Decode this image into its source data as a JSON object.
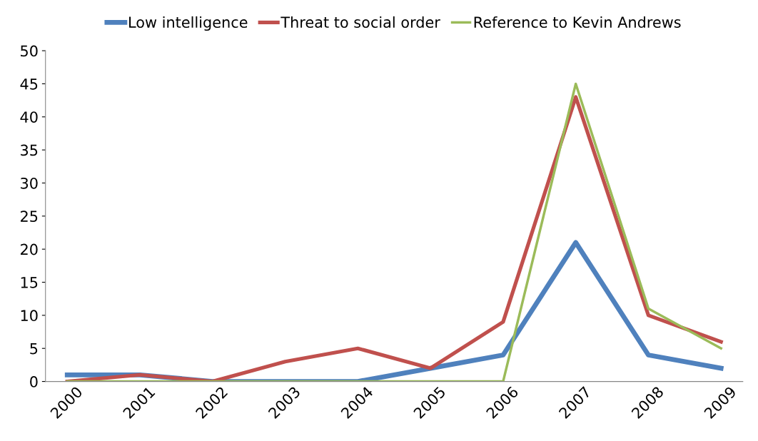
{
  "chart_data": {
    "type": "line",
    "categories": [
      "2000",
      "2001",
      "2002",
      "2003",
      "2004",
      "2005",
      "2006",
      "2007",
      "2008",
      "2009"
    ],
    "series": [
      {
        "name": "Low intelligence",
        "color": "#4f81bd",
        "values": [
          1,
          1,
          0,
          0,
          0,
          2,
          4,
          21,
          4,
          2
        ]
      },
      {
        "name": "Threat to social order",
        "color": "#c0504d",
        "values": [
          0,
          1,
          0,
          3,
          5,
          2,
          9,
          43,
          10,
          6
        ]
      },
      {
        "name": "Reference to Kevin Andrews",
        "color": "#9bbb59",
        "values": [
          0,
          0,
          0,
          0,
          0,
          0,
          0,
          45,
          11,
          5
        ]
      }
    ],
    "ylim": [
      0,
      50
    ],
    "yticks": [
      0,
      5,
      10,
      15,
      20,
      25,
      30,
      35,
      40,
      45,
      50
    ],
    "grid": false,
    "legend": "top",
    "marker": "none",
    "line_style": "solid"
  }
}
